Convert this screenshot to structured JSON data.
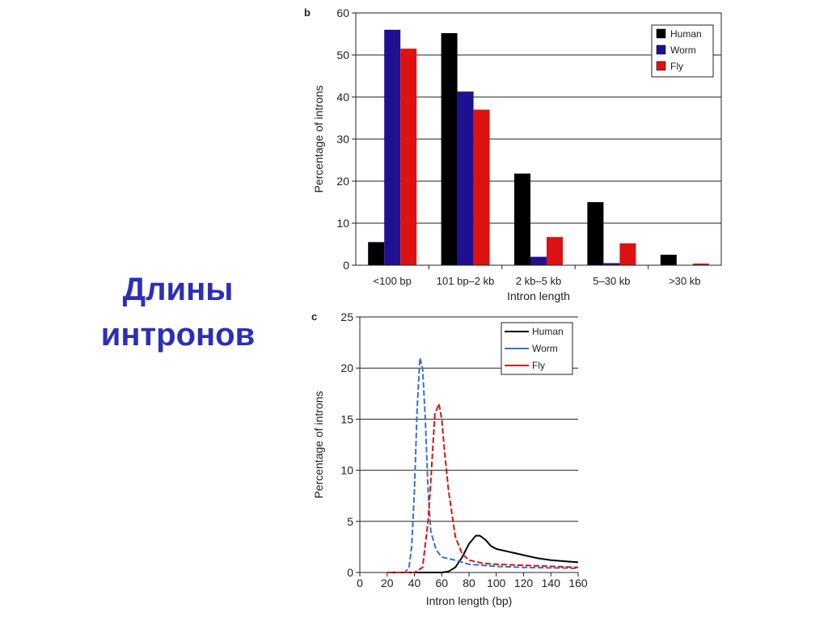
{
  "slide": {
    "title_line1": "Длины",
    "title_line2": "интронов"
  },
  "colors": {
    "title": "#2b2fb8",
    "human": "#000000",
    "worm_bar": "#1e1090",
    "worm_line": "#3d6fc8",
    "fly": "#dd1111"
  },
  "chart_data": [
    {
      "panel": "b",
      "type": "bar",
      "xlabel": "Intron length",
      "ylabel": "Percentage of introns",
      "ylim": [
        0,
        60
      ],
      "yticks": [
        0,
        10,
        20,
        30,
        40,
        50,
        60
      ],
      "grid": true,
      "legend_position": "top-right",
      "categories": [
        "<100 bp",
        "101 bp–2 kb",
        "2 kb–5 kb",
        "5–30 kb",
        ">30 kb"
      ],
      "series": [
        {
          "name": "Human",
          "values": [
            5.5,
            55.2,
            21.8,
            15.0,
            2.5
          ]
        },
        {
          "name": "Worm",
          "values": [
            56.0,
            41.3,
            2.0,
            0.5,
            0.0
          ]
        },
        {
          "name": "Fly",
          "values": [
            51.5,
            37.0,
            6.7,
            5.2,
            0.4
          ]
        }
      ]
    },
    {
      "panel": "c",
      "type": "line",
      "xlabel": "Intron length (bp)",
      "ylabel": "Percentage of introns",
      "xlim": [
        0,
        160
      ],
      "ylim": [
        0,
        25
      ],
      "xticks": [
        0,
        20,
        40,
        60,
        80,
        100,
        120,
        140,
        160
      ],
      "yticks": [
        0,
        5,
        10,
        15,
        20,
        25
      ],
      "grid": true,
      "legend_position": "top-right",
      "series": [
        {
          "name": "Human",
          "x": [
            20,
            60,
            65,
            70,
            75,
            80,
            85,
            88,
            92,
            96,
            100,
            110,
            120,
            130,
            140,
            150,
            160
          ],
          "y": [
            0,
            0,
            0.1,
            0.5,
            1.5,
            2.8,
            3.6,
            3.6,
            3.2,
            2.6,
            2.3,
            2.0,
            1.7,
            1.4,
            1.2,
            1.1,
            1.0
          ]
        },
        {
          "name": "Worm",
          "x": [
            20,
            33,
            36,
            38,
            40,
            42,
            44,
            46,
            48,
            50,
            52,
            56,
            60,
            70,
            80,
            100,
            120,
            160
          ],
          "y": [
            0,
            0,
            0.5,
            2.5,
            8,
            16,
            21,
            20,
            15,
            8,
            4,
            2.2,
            1.5,
            1.2,
            0.8,
            0.6,
            0.5,
            0.4
          ]
        },
        {
          "name": "Fly",
          "x": [
            20,
            40,
            46,
            50,
            52,
            55,
            58,
            60,
            62,
            65,
            70,
            75,
            80,
            90,
            100,
            120,
            140,
            160
          ],
          "y": [
            0,
            0,
            0.5,
            5,
            9,
            15.5,
            16.5,
            15,
            12,
            8,
            3.5,
            1.8,
            1.2,
            0.9,
            0.8,
            0.7,
            0.6,
            0.5
          ]
        }
      ]
    }
  ]
}
